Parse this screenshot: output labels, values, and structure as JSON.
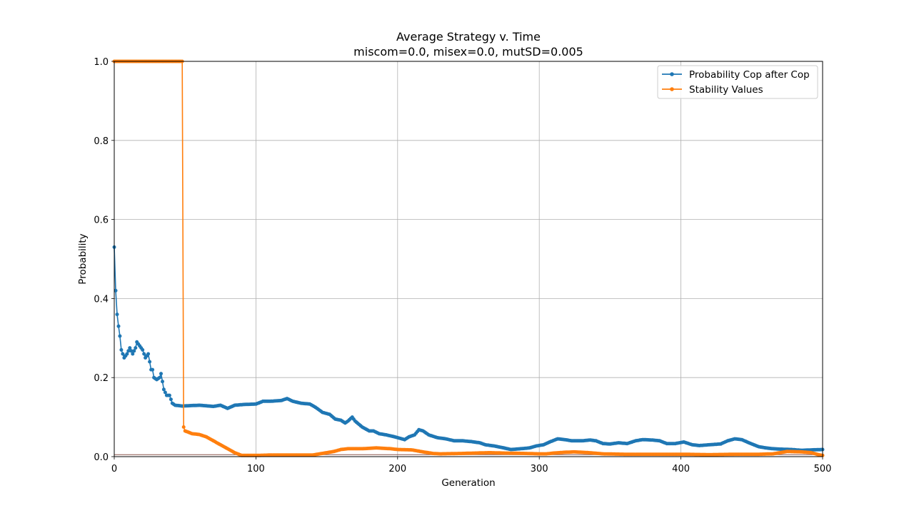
{
  "chart_data": {
    "type": "line",
    "title": "Average Strategy v. Time",
    "subtitle": "miscom=0.0, misex=0.0, mutSD=0.005",
    "xlabel": "Generation",
    "ylabel": "Probability",
    "xlim": [
      0,
      500
    ],
    "ylim": [
      0,
      1.0
    ],
    "xticks": [
      0,
      100,
      200,
      300,
      400,
      500
    ],
    "yticks": [
      0.0,
      0.2,
      0.4,
      0.6,
      0.8,
      1.0
    ],
    "xtick_labels": [
      "0",
      "100",
      "200",
      "300",
      "400",
      "500"
    ],
    "ytick_labels": [
      "0.0",
      "0.2",
      "0.4",
      "0.6",
      "0.8",
      "1.0"
    ],
    "grid": true,
    "legend_position": "top-right",
    "series": [
      {
        "name": "Probability Cop after Cop",
        "color": "#1f77b4",
        "keypoints": [
          [
            0,
            0.53
          ],
          [
            1,
            0.42
          ],
          [
            2,
            0.36
          ],
          [
            3,
            0.33
          ],
          [
            4,
            0.305
          ],
          [
            5,
            0.27
          ],
          [
            7,
            0.25
          ],
          [
            9,
            0.26
          ],
          [
            11,
            0.275
          ],
          [
            13,
            0.26
          ],
          [
            15,
            0.275
          ],
          [
            16,
            0.29
          ],
          [
            18,
            0.28
          ],
          [
            20,
            0.27
          ],
          [
            22,
            0.25
          ],
          [
            24,
            0.26
          ],
          [
            26,
            0.22
          ],
          [
            27,
            0.22
          ],
          [
            28,
            0.2
          ],
          [
            30,
            0.195
          ],
          [
            32,
            0.2
          ],
          [
            33,
            0.21
          ],
          [
            35,
            0.17
          ],
          [
            37,
            0.155
          ],
          [
            39,
            0.155
          ],
          [
            40,
            0.145
          ],
          [
            41,
            0.135
          ],
          [
            43,
            0.13
          ],
          [
            48,
            0.128
          ],
          [
            60,
            0.13
          ],
          [
            70,
            0.127
          ],
          [
            75,
            0.13
          ],
          [
            80,
            0.122
          ],
          [
            85,
            0.13
          ],
          [
            92,
            0.132
          ],
          [
            100,
            0.133
          ],
          [
            105,
            0.14
          ],
          [
            110,
            0.14
          ],
          [
            118,
            0.142
          ],
          [
            122,
            0.147
          ],
          [
            126,
            0.14
          ],
          [
            132,
            0.135
          ],
          [
            138,
            0.133
          ],
          [
            142,
            0.125
          ],
          [
            147,
            0.112
          ],
          [
            152,
            0.107
          ],
          [
            156,
            0.095
          ],
          [
            160,
            0.092
          ],
          [
            163,
            0.085
          ],
          [
            165,
            0.09
          ],
          [
            168,
            0.1
          ],
          [
            170,
            0.09
          ],
          [
            175,
            0.075
          ],
          [
            180,
            0.065
          ],
          [
            183,
            0.065
          ],
          [
            187,
            0.058
          ],
          [
            192,
            0.055
          ],
          [
            198,
            0.05
          ],
          [
            205,
            0.043
          ],
          [
            208,
            0.05
          ],
          [
            212,
            0.055
          ],
          [
            215,
            0.068
          ],
          [
            218,
            0.065
          ],
          [
            222,
            0.055
          ],
          [
            228,
            0.048
          ],
          [
            234,
            0.045
          ],
          [
            240,
            0.04
          ],
          [
            246,
            0.04
          ],
          [
            252,
            0.038
          ],
          [
            258,
            0.035
          ],
          [
            262,
            0.03
          ],
          [
            268,
            0.027
          ],
          [
            275,
            0.022
          ],
          [
            280,
            0.018
          ],
          [
            287,
            0.02
          ],
          [
            293,
            0.022
          ],
          [
            298,
            0.027
          ],
          [
            303,
            0.03
          ],
          [
            308,
            0.038
          ],
          [
            313,
            0.045
          ],
          [
            318,
            0.043
          ],
          [
            323,
            0.04
          ],
          [
            330,
            0.04
          ],
          [
            336,
            0.042
          ],
          [
            340,
            0.04
          ],
          [
            345,
            0.033
          ],
          [
            350,
            0.032
          ],
          [
            356,
            0.035
          ],
          [
            362,
            0.033
          ],
          [
            368,
            0.04
          ],
          [
            373,
            0.043
          ],
          [
            380,
            0.042
          ],
          [
            385,
            0.04
          ],
          [
            390,
            0.033
          ],
          [
            396,
            0.033
          ],
          [
            402,
            0.037
          ],
          [
            408,
            0.03
          ],
          [
            413,
            0.028
          ],
          [
            420,
            0.03
          ],
          [
            428,
            0.032
          ],
          [
            433,
            0.04
          ],
          [
            438,
            0.045
          ],
          [
            443,
            0.043
          ],
          [
            448,
            0.035
          ],
          [
            455,
            0.025
          ],
          [
            460,
            0.022
          ],
          [
            465,
            0.02
          ],
          [
            470,
            0.019
          ],
          [
            478,
            0.018
          ],
          [
            485,
            0.016
          ],
          [
            492,
            0.017
          ],
          [
            500,
            0.018
          ]
        ]
      },
      {
        "name": "Stability Values",
        "color": "#ff7f0e",
        "keypoints": [
          [
            0,
            1.0
          ],
          [
            48,
            1.0
          ],
          [
            48.5,
            0.08
          ],
          [
            50,
            0.065
          ],
          [
            55,
            0.058
          ],
          [
            60,
            0.056
          ],
          [
            65,
            0.05
          ],
          [
            70,
            0.04
          ],
          [
            75,
            0.03
          ],
          [
            80,
            0.02
          ],
          [
            85,
            0.01
          ],
          [
            90,
            0.003
          ],
          [
            95,
            0.003
          ],
          [
            100,
            0.003
          ],
          [
            110,
            0.004
          ],
          [
            120,
            0.004
          ],
          [
            140,
            0.004
          ],
          [
            145,
            0.007
          ],
          [
            150,
            0.01
          ],
          [
            155,
            0.013
          ],
          [
            160,
            0.018
          ],
          [
            165,
            0.02
          ],
          [
            175,
            0.02
          ],
          [
            180,
            0.021
          ],
          [
            185,
            0.022
          ],
          [
            195,
            0.02
          ],
          [
            200,
            0.018
          ],
          [
            210,
            0.017
          ],
          [
            218,
            0.012
          ],
          [
            225,
            0.008
          ],
          [
            230,
            0.007
          ],
          [
            245,
            0.008
          ],
          [
            255,
            0.009
          ],
          [
            265,
            0.01
          ],
          [
            275,
            0.009
          ],
          [
            290,
            0.008
          ],
          [
            300,
            0.007
          ],
          [
            305,
            0.007
          ],
          [
            310,
            0.009
          ],
          [
            318,
            0.011
          ],
          [
            325,
            0.012
          ],
          [
            335,
            0.01
          ],
          [
            345,
            0.007
          ],
          [
            360,
            0.006
          ],
          [
            380,
            0.006
          ],
          [
            400,
            0.006
          ],
          [
            420,
            0.005
          ],
          [
            440,
            0.006
          ],
          [
            455,
            0.006
          ],
          [
            465,
            0.007
          ],
          [
            470,
            0.01
          ],
          [
            475,
            0.013
          ],
          [
            485,
            0.012
          ],
          [
            492,
            0.01
          ],
          [
            497,
            0.005
          ],
          [
            500,
            0.003
          ]
        ]
      }
    ],
    "reference_lines": [
      {
        "y": 0.005,
        "color": "#8c564b"
      }
    ]
  }
}
